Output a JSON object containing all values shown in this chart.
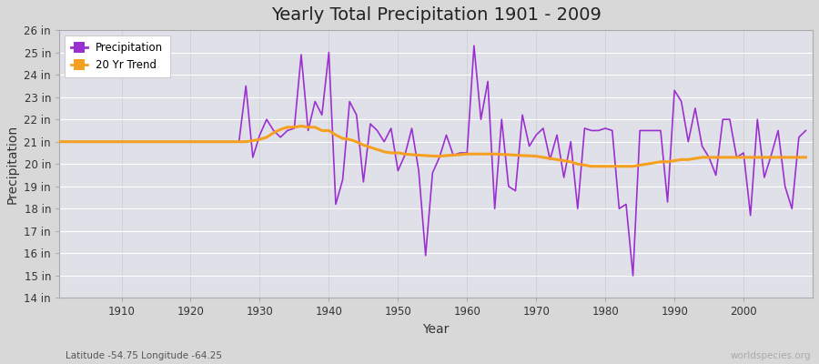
{
  "title": "Yearly Total Precipitation 1901 - 2009",
  "xlabel": "Year",
  "ylabel": "Precipitation",
  "lat_lon_label": "Latitude -54.75 Longitude -64.25",
  "watermark": "worldspecies.org",
  "bg_color": "#d8d8d8",
  "plot_bg_color": "#e0e0e8",
  "precip_color": "#9b30d0",
  "trend_color": "#f5a020",
  "ylim_min": 14,
  "ylim_max": 26,
  "ytick_step": 1,
  "years": [
    1901,
    1902,
    1903,
    1904,
    1905,
    1906,
    1907,
    1908,
    1909,
    1910,
    1911,
    1912,
    1913,
    1914,
    1915,
    1916,
    1917,
    1918,
    1919,
    1920,
    1921,
    1922,
    1923,
    1924,
    1925,
    1926,
    1927,
    1928,
    1929,
    1930,
    1931,
    1932,
    1933,
    1934,
    1935,
    1936,
    1937,
    1938,
    1939,
    1940,
    1941,
    1942,
    1943,
    1944,
    1945,
    1946,
    1947,
    1948,
    1949,
    1950,
    1951,
    1952,
    1953,
    1954,
    1955,
    1956,
    1957,
    1958,
    1959,
    1960,
    1961,
    1962,
    1963,
    1964,
    1965,
    1966,
    1967,
    1968,
    1969,
    1970,
    1971,
    1972,
    1973,
    1974,
    1975,
    1976,
    1977,
    1978,
    1979,
    1980,
    1981,
    1982,
    1983,
    1984,
    1985,
    1986,
    1987,
    1988,
    1989,
    1990,
    1991,
    1992,
    1993,
    1994,
    1995,
    1996,
    1997,
    1998,
    1999,
    2000,
    2001,
    2002,
    2003,
    2004,
    2005,
    2006,
    2007,
    2008,
    2009
  ],
  "precip": [
    21.0,
    21.0,
    21.0,
    21.0,
    21.0,
    21.0,
    21.0,
    21.0,
    21.0,
    21.0,
    21.0,
    21.0,
    21.0,
    21.0,
    21.0,
    21.0,
    21.0,
    21.0,
    21.0,
    21.0,
    21.0,
    21.0,
    21.0,
    21.0,
    21.0,
    21.0,
    21.0,
    23.5,
    20.3,
    21.3,
    22.0,
    21.5,
    21.2,
    21.5,
    21.6,
    24.9,
    21.5,
    22.8,
    22.2,
    25.0,
    18.2,
    19.3,
    22.8,
    22.2,
    19.2,
    21.8,
    21.5,
    21.0,
    21.6,
    19.7,
    20.4,
    21.6,
    19.7,
    15.9,
    19.6,
    20.3,
    21.3,
    20.4,
    20.5,
    20.5,
    25.3,
    22.0,
    23.7,
    18.0,
    22.0,
    19.0,
    18.8,
    22.2,
    20.8,
    21.3,
    21.6,
    20.2,
    21.3,
    19.4,
    21.0,
    18.0,
    21.6,
    21.5,
    21.5,
    21.6,
    21.5,
    18.0,
    18.2,
    15.0,
    21.5,
    21.5,
    21.5,
    21.5,
    18.3,
    23.3,
    22.8,
    21.0,
    22.5,
    20.8,
    20.3,
    19.5,
    22.0,
    22.0,
    20.3,
    20.5,
    17.7,
    22.0,
    19.4,
    20.4,
    21.5,
    19.0,
    18.0,
    21.2,
    21.5
  ],
  "trend": [
    21.0,
    21.0,
    21.0,
    21.0,
    21.0,
    21.0,
    21.0,
    21.0,
    21.0,
    21.0,
    21.0,
    21.0,
    21.0,
    21.0,
    21.0,
    21.0,
    21.0,
    21.0,
    21.0,
    21.0,
    21.0,
    21.0,
    21.0,
    21.0,
    21.0,
    21.0,
    21.0,
    21.0,
    21.05,
    21.1,
    21.2,
    21.4,
    21.55,
    21.65,
    21.65,
    21.7,
    21.65,
    21.65,
    21.5,
    21.5,
    21.3,
    21.15,
    21.1,
    21.0,
    20.85,
    20.75,
    20.65,
    20.55,
    20.5,
    20.5,
    20.45,
    20.42,
    20.4,
    20.38,
    20.36,
    20.35,
    20.38,
    20.4,
    20.42,
    20.45,
    20.45,
    20.45,
    20.45,
    20.45,
    20.43,
    20.42,
    20.4,
    20.38,
    20.37,
    20.35,
    20.3,
    20.25,
    20.2,
    20.15,
    20.1,
    20.0,
    19.95,
    19.9,
    19.9,
    19.9,
    19.9,
    19.9,
    19.9,
    19.9,
    19.95,
    20.0,
    20.05,
    20.1,
    20.1,
    20.15,
    20.2,
    20.2,
    20.25,
    20.3,
    20.3,
    20.3,
    20.3,
    20.3,
    20.3,
    20.3,
    20.3,
    20.3,
    20.3,
    20.3,
    20.3,
    20.3,
    20.3,
    20.3,
    20.3
  ]
}
